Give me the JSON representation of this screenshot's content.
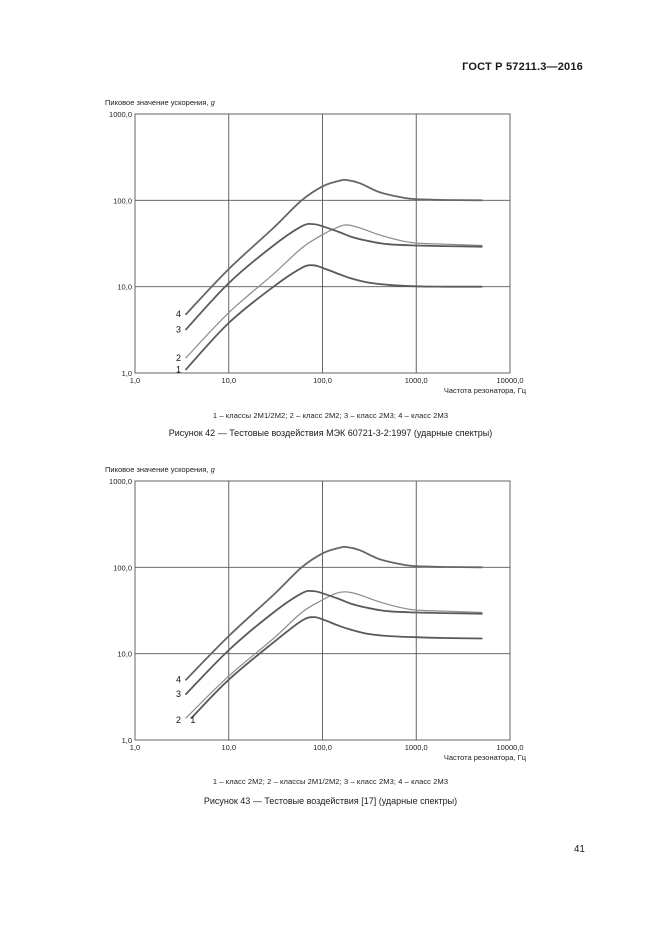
{
  "document": {
    "header": "ГОСТ Р 57211.3—2016",
    "page_number": "41"
  },
  "figures": [
    {
      "ylabel_prefix": "Пиковое значение ускорения, ",
      "ylabel_symbol": "g",
      "legend": "1 – классы 2М1/2М2; 2 – класс 2М2; 3 – класс 2М3; 4 – класс 2М3",
      "caption": "Рисунок 42 — Тестовые воздействия МЭК 60721-3-2:1997 (ударные спектры)"
    },
    {
      "ylabel_prefix": "Пиковое значение ускорения, ",
      "ylabel_symbol": "g",
      "legend": "1 – класс 2М2; 2 – классы 2М1/2М2; 3 – класс 2М3; 4 – класс 2М3",
      "caption": "Рисунок 43 — Тестовые воздействия [17] (ударные спектры)"
    }
  ],
  "chart_data": [
    {
      "type": "line",
      "xscale": "log",
      "yscale": "log",
      "xlim": [
        1,
        10000
      ],
      "ylim": [
        1,
        1000
      ],
      "xticks": [
        "1,0",
        "10,0",
        "100,0",
        "1000,0",
        "10000,0"
      ],
      "yticks": [
        "1,0",
        "10,0",
        "100,0",
        "1000,0"
      ],
      "xlabel": "Частота резонатора, Гц",
      "ylabel": "Пиковое значение ускорения, g",
      "series": [
        {
          "name": "1",
          "label": "1",
          "color": "#5a5a5a",
          "x": [
            3.5,
            10,
            30,
            60,
            80,
            100,
            150,
            200,
            300,
            500,
            1000,
            2000,
            5000
          ],
          "y": [
            1.1,
            3.8,
            10,
            16.5,
            17.7,
            16.5,
            14,
            12.5,
            11.2,
            10.5,
            10.1,
            10,
            10
          ]
        },
        {
          "name": "2",
          "label": "2",
          "color": "#8c8c8c",
          "x": [
            3.5,
            10,
            30,
            60,
            100,
            140,
            180,
            250,
            400,
            700,
            1000,
            2000,
            5000
          ],
          "y": [
            1.5,
            5,
            14,
            28,
            40,
            48,
            52,
            48,
            40,
            34,
            32,
            31,
            30
          ]
        },
        {
          "name": "3",
          "label": "3",
          "color": "#5a5a5a",
          "x": [
            3.5,
            10,
            30,
            60,
            80,
            100,
            150,
            200,
            300,
            500,
            1000,
            2000,
            5000
          ],
          "y": [
            3.2,
            11,
            30,
            50,
            53,
            50,
            43,
            38,
            34,
            31,
            30,
            29.5,
            29
          ]
        },
        {
          "name": "4",
          "label": "4",
          "color": "#666666",
          "x": [
            3.5,
            10,
            30,
            60,
            100,
            150,
            180,
            250,
            400,
            700,
            1000,
            2000,
            5000
          ],
          "y": [
            4.8,
            16,
            48,
            100,
            145,
            168,
            172,
            158,
            125,
            108,
            103,
            101,
            100
          ]
        }
      ]
    },
    {
      "type": "line",
      "xscale": "log",
      "yscale": "log",
      "xlim": [
        1,
        10000
      ],
      "ylim": [
        1,
        1000
      ],
      "xticks": [
        "1,0",
        "10,0",
        "100,0",
        "1000,0",
        "10000,0"
      ],
      "yticks": [
        "1,0",
        "10,0",
        "100,0",
        "1000,0"
      ],
      "xlabel": "Частота резонатора, Гц",
      "ylabel": "Пиковое значение ускорения, g",
      "series": [
        {
          "name": "1",
          "label": "1",
          "color": "#5a5a5a",
          "x": [
            4,
            10,
            30,
            60,
            80,
            100,
            150,
            200,
            300,
            500,
            1000,
            2000,
            5000
          ],
          "y": [
            1.8,
            5,
            13.5,
            24,
            26.5,
            25,
            21,
            19,
            17,
            16,
            15.5,
            15.2,
            15
          ]
        },
        {
          "name": "2",
          "label": "2",
          "color": "#8c8c8c",
          "x": [
            3.5,
            10,
            30,
            60,
            100,
            140,
            180,
            250,
            400,
            700,
            1000,
            2000,
            5000
          ],
          "y": [
            1.8,
            5.5,
            15,
            30,
            42,
            50,
            52,
            48,
            40,
            34,
            32,
            31,
            30
          ]
        },
        {
          "name": "3",
          "label": "3",
          "color": "#5a5a5a",
          "x": [
            3.5,
            10,
            30,
            60,
            80,
            100,
            150,
            200,
            300,
            500,
            1000,
            2000,
            5000
          ],
          "y": [
            3.4,
            11,
            30,
            50,
            53,
            50,
            43,
            38,
            34,
            31,
            30,
            29.5,
            29
          ]
        },
        {
          "name": "4",
          "label": "4",
          "color": "#666666",
          "x": [
            3.5,
            10,
            30,
            60,
            100,
            150,
            180,
            250,
            400,
            700,
            1000,
            2000,
            5000
          ],
          "y": [
            5,
            16,
            48,
            100,
            145,
            168,
            172,
            158,
            125,
            108,
            103,
            101,
            100
          ]
        }
      ]
    }
  ]
}
